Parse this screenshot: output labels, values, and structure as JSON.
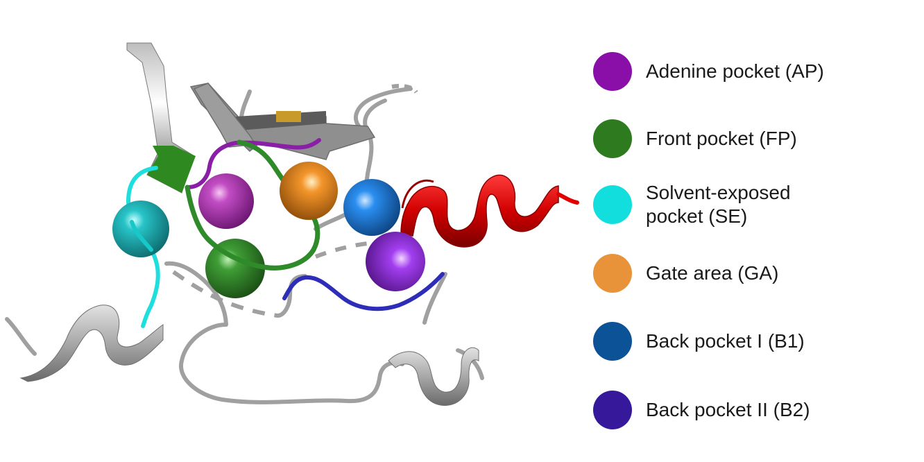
{
  "legend": {
    "items": [
      {
        "key": "AP",
        "label": "Adenine pocket (AP)",
        "color": "#8a0fa8"
      },
      {
        "key": "FP",
        "label": "Front pocket (FP)",
        "color": "#2e7a1e"
      },
      {
        "key": "SE",
        "label": "Solvent-exposed\npocket (SE)",
        "color": "#12dede"
      },
      {
        "key": "GA",
        "label": "Gate area (GA)",
        "color": "#e8923a"
      },
      {
        "key": "B1",
        "label": "Back pocket I (B1)",
        "color": "#0c5297"
      },
      {
        "key": "B2",
        "label": "Back pocket II (B2)",
        "color": "#36199b"
      }
    ]
  },
  "colors": {
    "backbone": "#9a9a9a",
    "helix": "#cc0000",
    "gate_sphere": "#f08c1c",
    "b1_sphere": "#1d86e8",
    "b2_sphere": "#9a30e8",
    "ap_sphere": "#a62aa8",
    "fp_sphere": "#2f8a2a",
    "se_sphere": "#1fc6cc"
  },
  "structure": {
    "icons": [
      "protein-ribbon",
      "alpha-helix",
      "beta-sheet",
      "pocket-sphere"
    ]
  }
}
